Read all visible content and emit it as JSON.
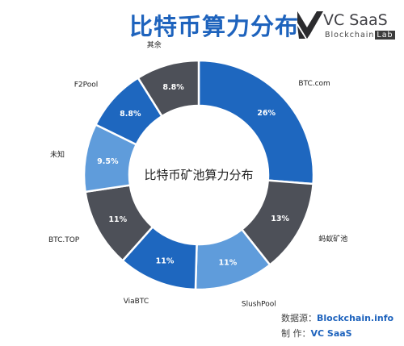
{
  "title": "比特币算力分布",
  "logo": {
    "name": "VC SaaS",
    "subtitle": "Blockchain",
    "subtitle_box": "Lab"
  },
  "footer": {
    "source_label": "数据源：",
    "source_value": "Blockchain.info",
    "maker_label": "制    作：",
    "maker_value": "VC SaaS"
  },
  "chart_data": {
    "type": "pie",
    "title": "比特币矿池算力分布",
    "series": [
      {
        "name": "BTC.com",
        "value": 26,
        "label": "26%",
        "color": "#1e67bf"
      },
      {
        "name": "蚂蚁矿池",
        "value": 13,
        "label": "13%",
        "color": "#4d5058"
      },
      {
        "name": "SlushPool",
        "value": 11,
        "label": "11%",
        "color": "#5f9cdb"
      },
      {
        "name": "ViaBTC",
        "value": 11,
        "label": "11%",
        "color": "#1e67bf"
      },
      {
        "name": "BTC.TOP",
        "value": 11,
        "label": "11%",
        "color": "#4d5058"
      },
      {
        "name": "未知",
        "value": 9.5,
        "label": "9.5%",
        "color": "#5f9cdb"
      },
      {
        "name": "F2Pool",
        "value": 8.8,
        "label": "8.8%",
        "color": "#1e67bf"
      },
      {
        "name": "其余",
        "value": 8.8,
        "label": "8.8%",
        "color": "#4d5058"
      }
    ],
    "legend": "none"
  }
}
